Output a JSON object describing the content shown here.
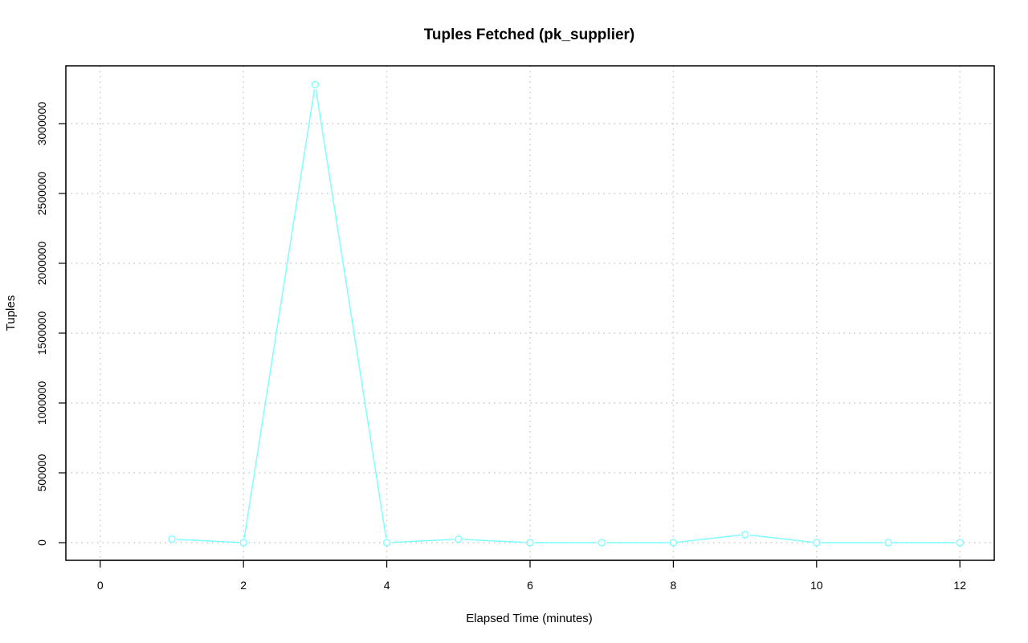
{
  "chart_data": {
    "type": "line",
    "title": "Tuples Fetched (pk_supplier)",
    "xlabel": "Elapsed Time (minutes)",
    "ylabel": "Tuples",
    "xlim": [
      0,
      12
    ],
    "ylim": [
      0,
      3300000
    ],
    "x_ticks": [
      0,
      2,
      4,
      6,
      8,
      10,
      12
    ],
    "y_ticks": [
      0,
      500000,
      1000000,
      1500000,
      2000000,
      2500000,
      3000000
    ],
    "grid": true,
    "series_color": "#7fffff",
    "series": [
      {
        "x": [
          1,
          2,
          3,
          4,
          5,
          6,
          7,
          8,
          9,
          10,
          11,
          12
        ],
        "values": [
          25000,
          0,
          3280000,
          0,
          25000,
          0,
          0,
          0,
          58000,
          0,
          0,
          0
        ]
      }
    ]
  }
}
